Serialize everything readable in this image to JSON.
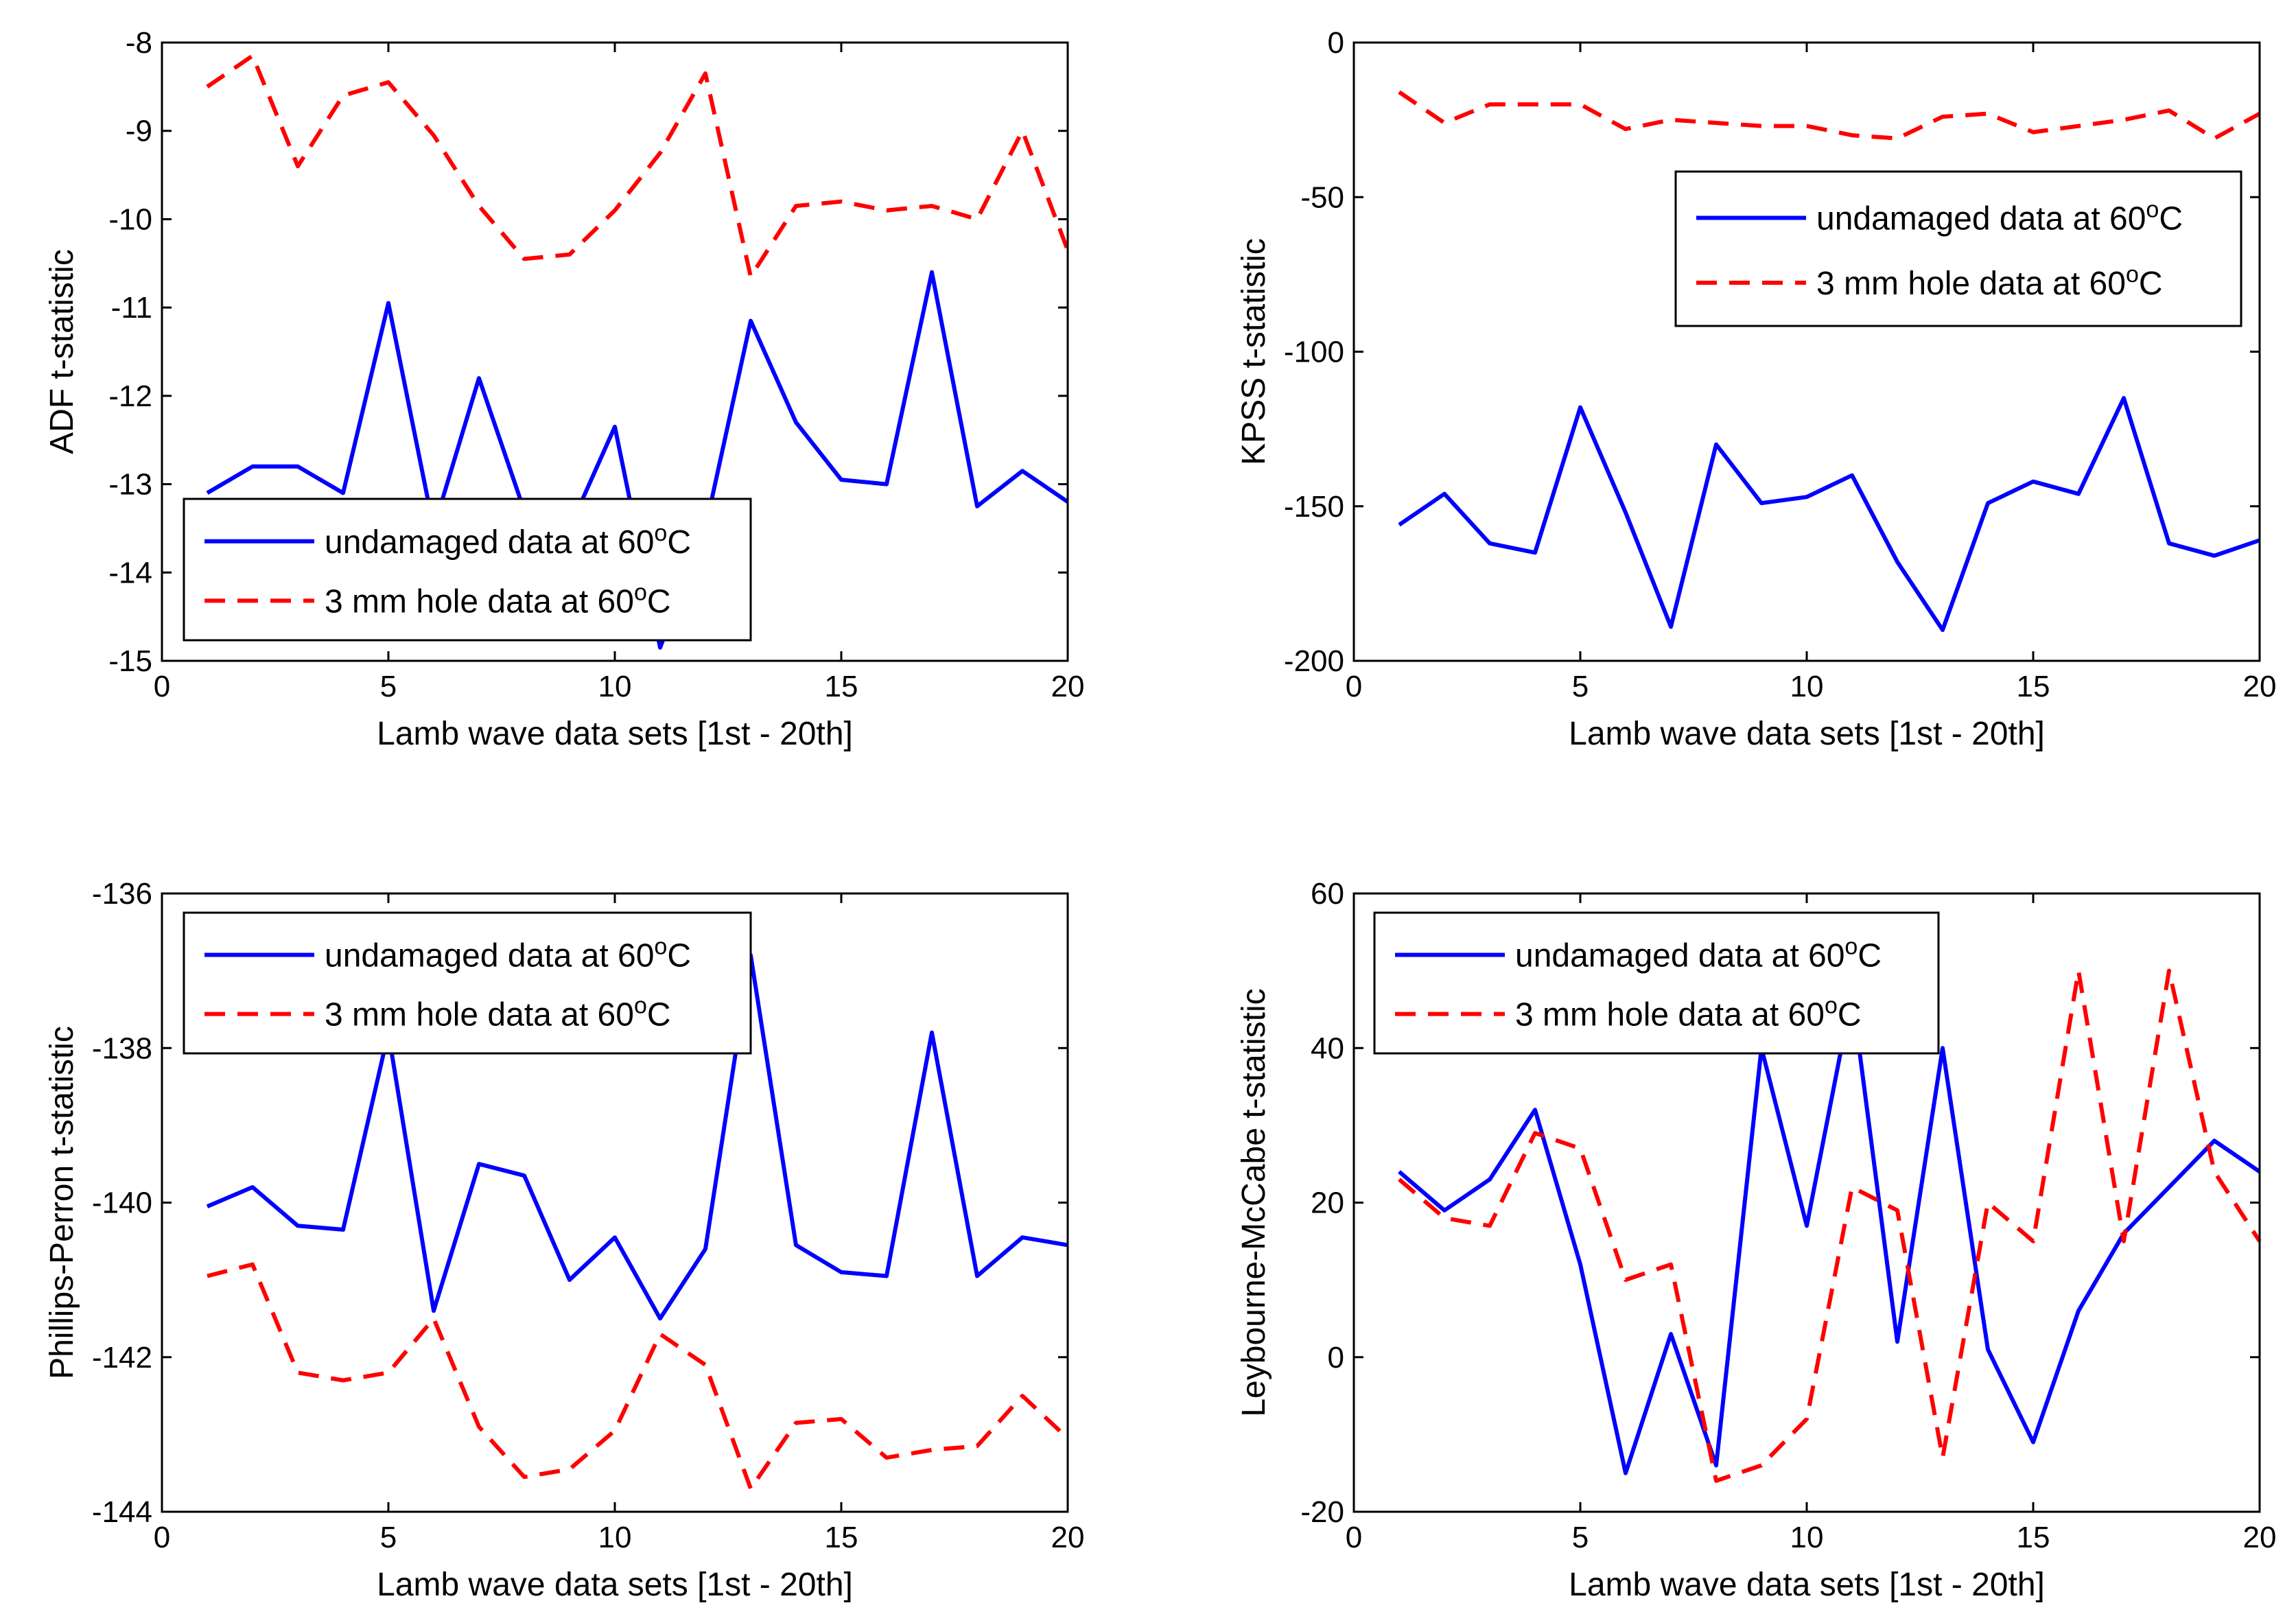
{
  "figure": {
    "panel_count": 4
  },
  "chart_data": [
    {
      "type": "line",
      "title": "",
      "xlabel": "Lamb wave data sets [1st - 20th]",
      "ylabel": "ADF t-statistic",
      "xlim": [
        0,
        20
      ],
      "ylim": [
        -15,
        -8
      ],
      "xticks": [
        0,
        5,
        10,
        15,
        20
      ],
      "yticks": [
        -15,
        -14,
        -13,
        -12,
        -11,
        -10,
        -9,
        -8
      ],
      "grid": false,
      "legend_position": "bottom-left",
      "x": [
        1,
        2,
        3,
        4,
        5,
        6,
        7,
        8,
        9,
        10,
        11,
        12,
        13,
        14,
        15,
        16,
        17,
        18,
        19,
        20
      ],
      "series": [
        {
          "name": "undamaged data at 60°C",
          "style": "solid",
          "color": "#0000ff",
          "values": [
            -13.1,
            -12.8,
            -12.8,
            -13.1,
            -10.95,
            -13.5,
            -11.8,
            -13.3,
            -13.5,
            -12.35,
            -14.85,
            -13.5,
            -11.15,
            -12.3,
            -12.95,
            -13.0,
            -10.6,
            -13.25,
            -12.85,
            -13.2
          ]
        },
        {
          "name": "3 mm hole data at 60°C",
          "style": "dashed",
          "color": "#ff0000",
          "values": [
            -8.5,
            -8.15,
            -9.4,
            -8.6,
            -8.45,
            -9.05,
            -9.85,
            -10.45,
            -10.4,
            -9.9,
            -9.25,
            -8.35,
            -10.65,
            -9.85,
            -9.8,
            -9.9,
            -9.85,
            -10.0,
            -9.0,
            -10.35
          ]
        }
      ]
    },
    {
      "type": "line",
      "title": "",
      "xlabel": "Lamb wave data sets [1st - 20th]",
      "ylabel": "KPSS t-statistic",
      "xlim": [
        0,
        20
      ],
      "ylim": [
        -200,
        0
      ],
      "xticks": [
        0,
        5,
        10,
        15,
        20
      ],
      "yticks": [
        -200,
        -150,
        -100,
        -50,
        0
      ],
      "grid": false,
      "legend_position": "top-right",
      "x": [
        1,
        2,
        3,
        4,
        5,
        6,
        7,
        8,
        9,
        10,
        11,
        12,
        13,
        14,
        15,
        16,
        17,
        18,
        19,
        20
      ],
      "series": [
        {
          "name": "undamaged data at 60°C",
          "style": "solid",
          "color": "#0000ff",
          "values": [
            -156,
            -146,
            -162,
            -165,
            -118,
            -152,
            -189,
            -130,
            -149,
            -147,
            -140,
            -168,
            -190,
            -149,
            -142,
            -146,
            -115,
            -162,
            -166,
            -161
          ]
        },
        {
          "name": "3 mm hole data at 60°C",
          "style": "dashed",
          "color": "#ff0000",
          "values": [
            -16,
            -26,
            -20,
            -20,
            -20,
            -28,
            -25,
            -26,
            -27,
            -27,
            -30,
            -31,
            -24,
            -23,
            -29,
            -27,
            -25,
            -22,
            -31,
            -23
          ]
        }
      ]
    },
    {
      "type": "line",
      "title": "",
      "xlabel": "Lamb wave data sets [1st - 20th]",
      "ylabel": "Phillips-Perron t-statistic",
      "xlim": [
        0,
        20
      ],
      "ylim": [
        -144,
        -136
      ],
      "xticks": [
        0,
        5,
        10,
        15,
        20
      ],
      "yticks": [
        -144,
        -142,
        -140,
        -138,
        -136
      ],
      "grid": false,
      "legend_position": "top-left",
      "x": [
        1,
        2,
        3,
        4,
        5,
        6,
        7,
        8,
        9,
        10,
        11,
        12,
        13,
        14,
        15,
        16,
        17,
        18,
        19,
        20
      ],
      "series": [
        {
          "name": "undamaged data at 60°C",
          "style": "solid",
          "color": "#0000ff",
          "values": [
            -140.05,
            -139.8,
            -140.3,
            -140.35,
            -137.8,
            -141.4,
            -139.5,
            -139.65,
            -141.0,
            -140.45,
            -141.5,
            -140.6,
            -136.8,
            -140.55,
            -140.9,
            -140.95,
            -137.8,
            -140.95,
            -140.45,
            -140.55
          ]
        },
        {
          "name": "3 mm hole data at 60°C",
          "style": "dashed",
          "color": "#ff0000",
          "values": [
            -140.95,
            -140.8,
            -142.2,
            -142.3,
            -142.2,
            -141.5,
            -142.9,
            -143.55,
            -143.45,
            -142.95,
            -141.7,
            -142.1,
            -143.7,
            -142.85,
            -142.8,
            -143.3,
            -143.2,
            -143.15,
            -142.5,
            -143.05
          ]
        }
      ]
    },
    {
      "type": "line",
      "title": "",
      "xlabel": "Lamb wave data sets [1st - 20th]",
      "ylabel": "Leybourne-McCabe t-statistic",
      "xlim": [
        0,
        20
      ],
      "ylim": [
        -20,
        60
      ],
      "xticks": [
        0,
        5,
        10,
        15,
        20
      ],
      "yticks": [
        -20,
        0,
        20,
        40,
        60
      ],
      "grid": false,
      "legend_position": "top-left",
      "x": [
        1,
        2,
        3,
        4,
        5,
        6,
        7,
        8,
        9,
        10,
        11,
        12,
        13,
        14,
        15,
        16,
        17,
        18,
        19,
        20
      ],
      "series": [
        {
          "name": "undamaged data at 60°C",
          "style": "solid",
          "color": "#0000ff",
          "values": [
            24,
            19,
            23,
            32,
            12,
            -15,
            3,
            -14,
            40,
            17,
            47,
            2,
            40,
            1,
            -11,
            6,
            16,
            22,
            28,
            24
          ]
        },
        {
          "name": "3 mm hole data at 60°C",
          "style": "dashed",
          "color": "#ff0000",
          "values": [
            23,
            18,
            17,
            29,
            27,
            10,
            12,
            -16,
            -14,
            -8,
            22,
            19,
            -13,
            20,
            15,
            50,
            15,
            50,
            24,
            15
          ]
        }
      ]
    }
  ]
}
